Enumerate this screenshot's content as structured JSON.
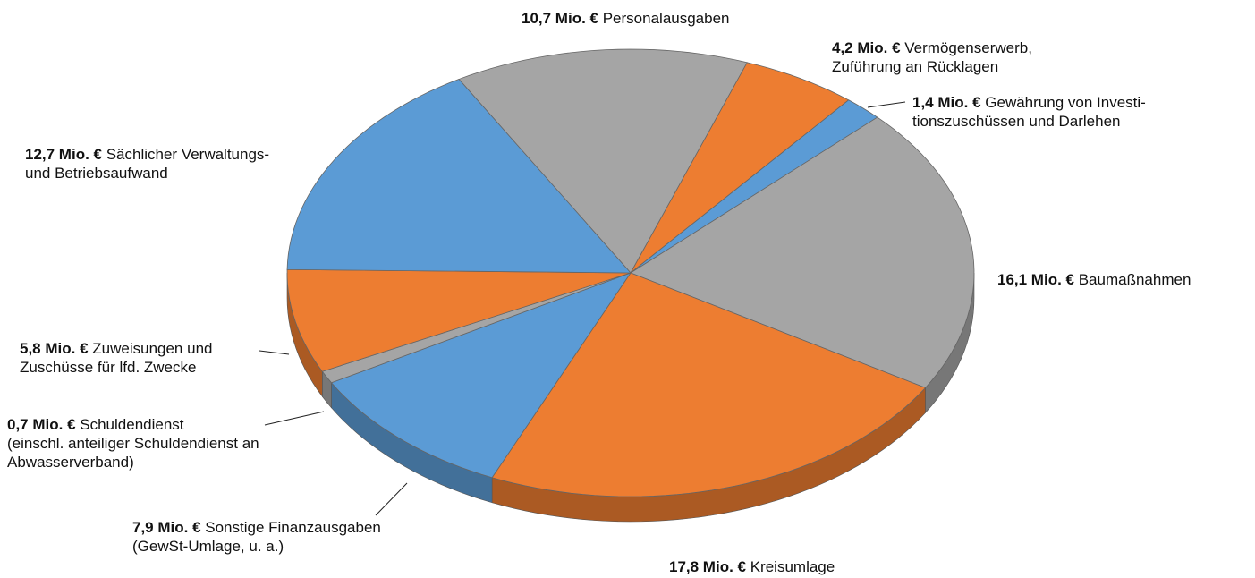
{
  "chart_data": {
    "type": "pie3d",
    "categories": [
      "Personalausgaben",
      "Vermögenserwerb,\nZuführung an Rücklagen",
      "Gewährung von Investi-\ntionszuschüssen und Darlehen",
      "Baumaßnahmen",
      "Kreisumlage",
      "Sonstige Finanzausgaben\n(GewSt-Umlage,  u. a.)",
      "Schuldendienst\n(einschl. anteiliger Schuldendienst an\nAbwasserverband)",
      "Zuweisungen und\nZuschüsse für lfd. Zwecke",
      "Sächlicher Verwaltungs-\nund Betriebsaufwand"
    ],
    "values": [
      10.7,
      4.2,
      1.4,
      16.1,
      17.8,
      7.9,
      0.7,
      5.8,
      12.7
    ],
    "value_labels": [
      "10,7 Mio. €",
      "4,2 Mio. €",
      "1,4 Mio. €",
      "16,1 Mio. €",
      "17,8 Mio. €",
      "7,9 Mio. €",
      "0,7 Mio. €",
      "5,8 Mio. €",
      "12,7 Mio. €"
    ],
    "colors": [
      "#a5a5a5",
      "#ed7d31",
      "#5b9bd5",
      "#a5a5a5",
      "#ed7d31",
      "#5b9bd5",
      "#a5a5a5",
      "#ed7d31",
      "#5b9bd5"
    ]
  }
}
